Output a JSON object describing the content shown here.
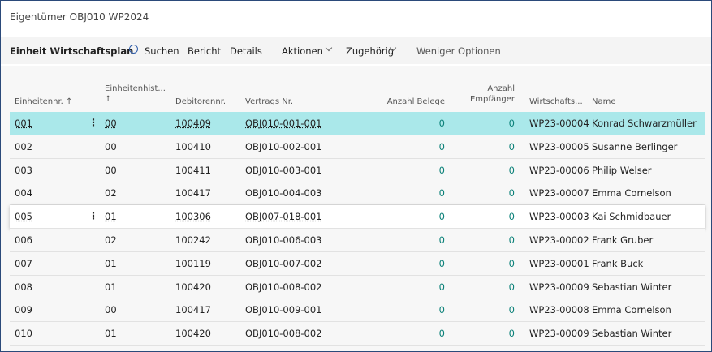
{
  "header": {
    "title": "Eigentümer OBJ010 WP2024"
  },
  "toolbar": {
    "active": "Einheit Wirtschaftsplan",
    "items": [
      "Suchen",
      "Bericht",
      "Details"
    ],
    "menus": [
      "Aktionen",
      "Zugehörig"
    ],
    "less": "Weniger Optionen"
  },
  "table": {
    "columns": [
      "Einheitennr. ↑",
      "Einheitenhist...\n↑",
      "Debitorennr.",
      "Vertrags Nr.",
      "Anzahl Belege",
      "Anzahl\nEmpfänger",
      "Wirtschafts...",
      "Name"
    ],
    "rows": [
      [
        "001",
        "00",
        "100409",
        "OBJ010-001-001",
        "0",
        "0",
        "WP23-00004",
        "Konrad Schwarzmüller"
      ],
      [
        "002",
        "00",
        "100410",
        "OBJ010-002-001",
        "0",
        "0",
        "WP23-00005",
        "Susanne Berlinger"
      ],
      [
        "003",
        "00",
        "100411",
        "OBJ010-003-001",
        "0",
        "0",
        "WP23-00006",
        "Philip Welser"
      ],
      [
        "004",
        "02",
        "100417",
        "OBJ010-004-003",
        "0",
        "0",
        "WP23-00007",
        "Emma Cornelson"
      ],
      [
        "005",
        "01",
        "100306",
        "OBJ007-018-001",
        "0",
        "0",
        "WP23-00003",
        "Kai Schmidbauer"
      ],
      [
        "006",
        "02",
        "100242",
        "OBJ010-006-003",
        "0",
        "0",
        "WP23-00002",
        "Frank Gruber"
      ],
      [
        "007",
        "01",
        "100119",
        "OBJ010-007-002",
        "0",
        "0",
        "WP23-00001",
        "Frank Buck"
      ],
      [
        "008",
        "01",
        "100420",
        "OBJ010-008-002",
        "0",
        "0",
        "WP23-00009",
        "Sebastian Winter"
      ],
      [
        "009",
        "00",
        "100417",
        "OBJ010-009-001",
        "0",
        "0",
        "WP23-00008",
        "Emma Cornelson"
      ],
      [
        "010",
        "01",
        "100420",
        "OBJ010-008-002",
        "0",
        "0",
        "WP23-00009",
        "Sebastian Winter"
      ]
    ]
  }
}
